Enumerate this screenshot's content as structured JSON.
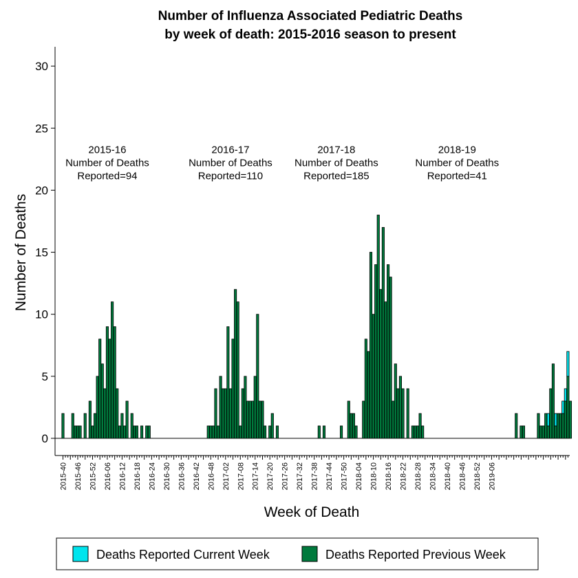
{
  "chart_data": {
    "type": "bar",
    "title": [
      "Number of Influenza Associated Pediatric Deaths",
      "by week of death: 2015-2016 season to present"
    ],
    "xlabel": "Week of Death",
    "ylabel": "Number of Deaths",
    "ylim": [
      -1.5,
      30
    ],
    "yticks": [
      0,
      5,
      10,
      15,
      20,
      25,
      30
    ],
    "x_tick_labels": [
      "2015-40",
      "2015-46",
      "2015-52",
      "2016-06",
      "2016-12",
      "2016-18",
      "2016-24",
      "2016-30",
      "2016-36",
      "2016-42",
      "2016-48",
      "2017-02",
      "2017-08",
      "2017-14",
      "2017-20",
      "2017-26",
      "2017-32",
      "2017-38",
      "2017-44",
      "2017-50",
      "2018-04",
      "2018-10",
      "2018-16",
      "2018-22",
      "2018-28",
      "2018-34",
      "2018-40",
      "2018-46",
      "2018-52",
      "2019-06"
    ],
    "x_tick_every": 6,
    "colors": {
      "current": "#00e5ee",
      "previous": "#007a3d"
    },
    "series": [
      {
        "name": "Deaths Reported Previous Week",
        "color": "#007a3d",
        "values": [
          2,
          0,
          0,
          0,
          2,
          1,
          1,
          1,
          0,
          2,
          0,
          3,
          1,
          2,
          5,
          8,
          6,
          4,
          9,
          8,
          11,
          9,
          4,
          1,
          2,
          1,
          3,
          0,
          2,
          1,
          1,
          0,
          1,
          0,
          1,
          1,
          0,
          0,
          0,
          0,
          0,
          0,
          0,
          0,
          0,
          0,
          0,
          0,
          0,
          0,
          0,
          0,
          0,
          0,
          0,
          0,
          0,
          0,
          0,
          1,
          1,
          1,
          4,
          1,
          5,
          4,
          4,
          9,
          4,
          8,
          12,
          11,
          1,
          4,
          5,
          3,
          3,
          3,
          5,
          10,
          3,
          3,
          1,
          0,
          1,
          2,
          0,
          1,
          0,
          0,
          0,
          0,
          0,
          0,
          0,
          0,
          0,
          0,
          0,
          0,
          0,
          0,
          0,
          0,
          1,
          0,
          1,
          0,
          0,
          0,
          0,
          0,
          0,
          1,
          0,
          0,
          3,
          2,
          2,
          1,
          0,
          0,
          3,
          8,
          7,
          15,
          10,
          14,
          18,
          12,
          17,
          11,
          14,
          13,
          3,
          6,
          4,
          5,
          4,
          0,
          4,
          0,
          1,
          1,
          1,
          2,
          1,
          0,
          0,
          0,
          0,
          0,
          0,
          0,
          0,
          0,
          0,
          0,
          0,
          0,
          0,
          0,
          0,
          0,
          0,
          0,
          0,
          0,
          0,
          0,
          0,
          0,
          0,
          0,
          0,
          0,
          0,
          0,
          0,
          0,
          0,
          0,
          0,
          0,
          2,
          0,
          1,
          1,
          0,
          0,
          0,
          0,
          0,
          2,
          1,
          1,
          2,
          1,
          4,
          6,
          1,
          2,
          2,
          2,
          3,
          5,
          3,
          0
        ]
      },
      {
        "name": "Deaths Reported Current Week",
        "color": "#00e5ee",
        "values": [
          0,
          0,
          0,
          0,
          0,
          0,
          0,
          0,
          0,
          0,
          0,
          0,
          0,
          0,
          0,
          0,
          0,
          0,
          0,
          0,
          0,
          0,
          0,
          0,
          0,
          0,
          0,
          0,
          0,
          0,
          0,
          0,
          0,
          0,
          0,
          0,
          0,
          0,
          0,
          0,
          0,
          0,
          0,
          0,
          0,
          0,
          0,
          0,
          0,
          0,
          0,
          0,
          0,
          0,
          0,
          0,
          0,
          0,
          0,
          0,
          0,
          0,
          0,
          0,
          0,
          0,
          0,
          0,
          0,
          0,
          0,
          0,
          0,
          0,
          0,
          0,
          0,
          0,
          0,
          0,
          0,
          0,
          0,
          0,
          0,
          0,
          0,
          0,
          0,
          0,
          0,
          0,
          0,
          0,
          0,
          0,
          0,
          0,
          0,
          0,
          0,
          0,
          0,
          0,
          0,
          0,
          0,
          0,
          0,
          0,
          0,
          0,
          0,
          0,
          0,
          0,
          0,
          0,
          0,
          0,
          0,
          0,
          0,
          0,
          0,
          0,
          0,
          0,
          0,
          0,
          0,
          0,
          0,
          0,
          0,
          0,
          0,
          0,
          0,
          0,
          0,
          0,
          0,
          0,
          0,
          0,
          0,
          0,
          0,
          0,
          0,
          0,
          0,
          0,
          0,
          0,
          0,
          0,
          0,
          0,
          0,
          0,
          0,
          0,
          0,
          0,
          0,
          0,
          0,
          0,
          0,
          0,
          0,
          0,
          0,
          0,
          0,
          0,
          0,
          0,
          0,
          0,
          0,
          0,
          0,
          0,
          0,
          0,
          0,
          0,
          0,
          0,
          0,
          0,
          0,
          0,
          0,
          1,
          0,
          0,
          1,
          0,
          0,
          1,
          1,
          2
        ]
      }
    ],
    "annotations": [
      {
        "at_index": 18,
        "lines": [
          "2015-16",
          "Number of Deaths",
          "Reported=94"
        ]
      },
      {
        "at_index": 68,
        "lines": [
          "2016-17",
          "Number of Deaths",
          "Reported=110"
        ]
      },
      {
        "at_index": 111,
        "lines": [
          "2017-18",
          "Number of Deaths",
          "Reported=185"
        ]
      },
      {
        "at_index": 160,
        "lines": [
          "2018-19",
          "Number of Deaths",
          "Reported=41"
        ]
      }
    ],
    "annotation_y": 23,
    "legend": {
      "position": "bottom",
      "items": [
        {
          "label": "Deaths Reported Current Week",
          "color": "#00e5ee"
        },
        {
          "label": "Deaths Reported Previous Week",
          "color": "#007a3d"
        }
      ]
    }
  }
}
